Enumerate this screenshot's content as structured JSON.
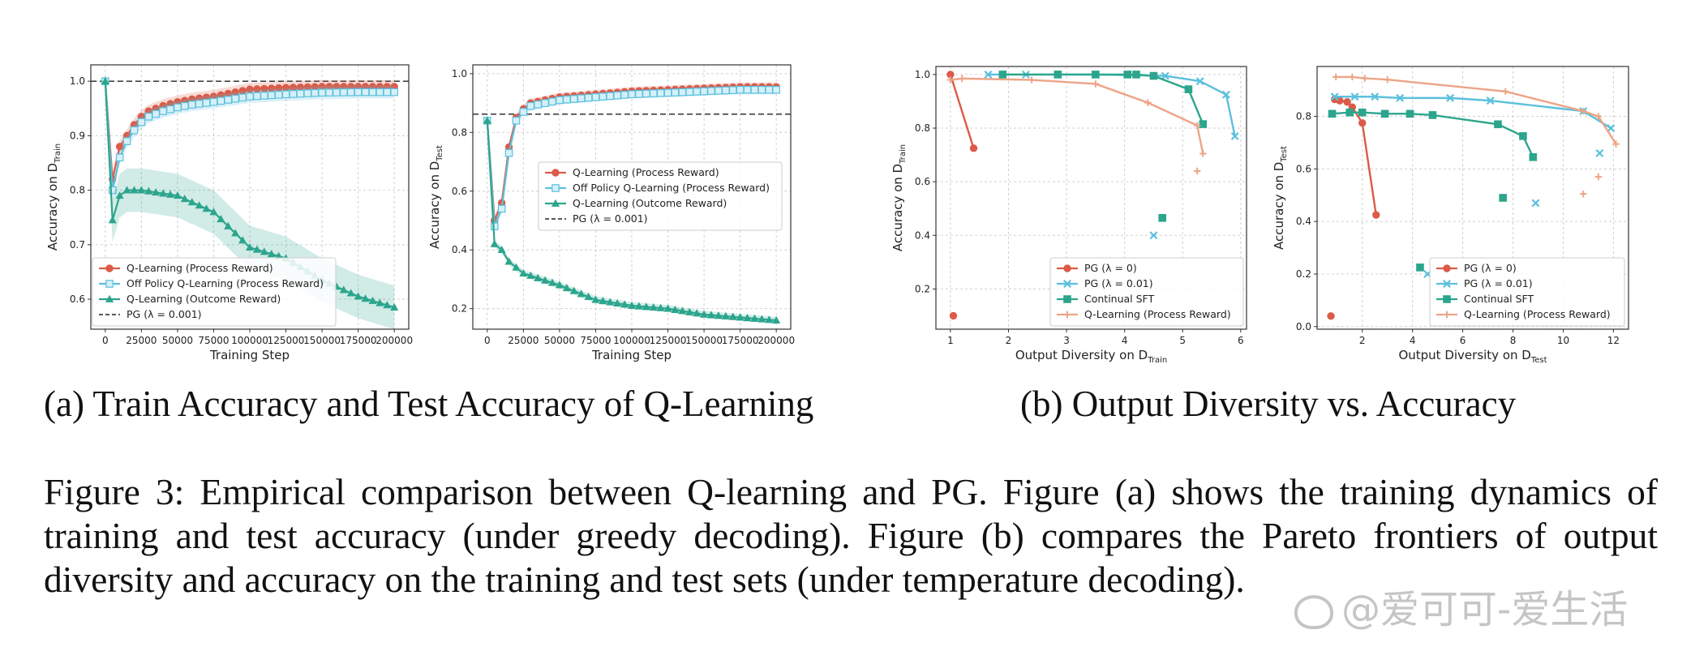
{
  "subcaptions": {
    "a": "(a) Train Accuracy and Test Accuracy of Q-Learning",
    "b": "(b) Output Diversity vs. Accuracy"
  },
  "caption": "Figure 3: Empirical comparison between Q-learning and PG. Figure (a) shows the training dynamics of training and test accuracy (under greedy decoding). Figure (b) compares the Pareto frontiers of output diversity and accuracy on the training and test sets (under temperature decoding).",
  "watermark": "@爱可可-爱生活",
  "colors": {
    "red": "#dc5b48",
    "blue": "#5bc0de",
    "teal": "#2ca58d",
    "salmon": "#eda487",
    "dash": "#222222"
  },
  "chart_data": [
    {
      "type": "line",
      "title": "",
      "xlabel": "Training Step",
      "ylabel": "Accuracy on D_Train",
      "ylabel_main": "Accuracy on D",
      "ylabel_sub": "Train",
      "xlim": [
        -10000,
        210000
      ],
      "ylim": [
        0.545,
        1.03
      ],
      "xticks": [
        0,
        25000,
        50000,
        75000,
        100000,
        125000,
        150000,
        175000,
        200000
      ],
      "xtick_labels": [
        "0",
        "25000",
        "50000",
        "75000",
        "100000",
        "125000",
        "150000",
        "175000",
        "200000"
      ],
      "yticks": [
        0.6,
        0.7,
        0.8,
        0.9,
        1.0
      ],
      "ytick_labels": [
        "0.6",
        "0.7",
        "0.8",
        "0.9",
        "1.0"
      ],
      "grid": true,
      "legend": "bottom-left",
      "hline": {
        "y": 1.0,
        "name": "PG (λ = 0.001)"
      },
      "series": [
        {
          "name": "Q-Learning (Process Reward)",
          "color": "#dc5b48",
          "marker": "circle",
          "band": 0.012,
          "x": [
            0,
            5000,
            10000,
            15000,
            20000,
            25000,
            30000,
            40000,
            50000,
            60000,
            75000,
            100000,
            125000,
            150000,
            175000,
            200000
          ],
          "y": [
            1.0,
            0.82,
            0.88,
            0.9,
            0.92,
            0.935,
            0.945,
            0.955,
            0.962,
            0.967,
            0.972,
            0.985,
            0.988,
            0.99,
            0.99,
            0.99
          ]
        },
        {
          "name": "Off Policy Q-Learning (Process Reward)",
          "color": "#5bc0de",
          "marker": "square",
          "band": 0.012,
          "x": [
            0,
            5000,
            10000,
            15000,
            20000,
            25000,
            30000,
            40000,
            50000,
            60000,
            75000,
            100000,
            125000,
            150000,
            175000,
            200000
          ],
          "y": [
            1.0,
            0.8,
            0.86,
            0.89,
            0.91,
            0.925,
            0.935,
            0.945,
            0.952,
            0.957,
            0.962,
            0.972,
            0.976,
            0.979,
            0.98,
            0.98
          ]
        },
        {
          "name": "Q-Learning (Outcome Reward)",
          "color": "#2ca58d",
          "marker": "triangle",
          "band": 0.04,
          "x": [
            0,
            5000,
            10000,
            15000,
            25000,
            50000,
            75000,
            100000,
            125000,
            150000,
            175000,
            200000
          ],
          "y": [
            1.0,
            0.745,
            0.79,
            0.8,
            0.8,
            0.79,
            0.76,
            0.695,
            0.675,
            0.635,
            0.605,
            0.585
          ]
        }
      ]
    },
    {
      "type": "line",
      "title": "",
      "xlabel": "Training Step",
      "ylabel": "Accuracy on D_Test",
      "ylabel_main": "Accuracy on D",
      "ylabel_sub": "Test",
      "xlim": [
        -10000,
        210000
      ],
      "ylim": [
        0.13,
        1.03
      ],
      "xticks": [
        0,
        25000,
        50000,
        75000,
        100000,
        125000,
        150000,
        175000,
        200000
      ],
      "xtick_labels": [
        "0",
        "25000",
        "50000",
        "75000",
        "100000",
        "125000",
        "150000",
        "175000",
        "200000"
      ],
      "yticks": [
        0.2,
        0.4,
        0.6,
        0.8,
        1.0
      ],
      "ytick_labels": [
        "0.2",
        "0.4",
        "0.6",
        "0.8",
        "1.0"
      ],
      "grid": true,
      "legend": "center-right",
      "hline": {
        "y": 0.862,
        "name": "PG (λ = 0.001)"
      },
      "series": [
        {
          "name": "Q-Learning (Process Reward)",
          "color": "#dc5b48",
          "marker": "circle",
          "band": 0.015,
          "x": [
            0,
            5000,
            10000,
            15000,
            20000,
            25000,
            30000,
            40000,
            50000,
            75000,
            100000,
            125000,
            150000,
            175000,
            200000
          ],
          "y": [
            0.84,
            0.5,
            0.56,
            0.75,
            0.85,
            0.88,
            0.9,
            0.91,
            0.92,
            0.93,
            0.94,
            0.945,
            0.95,
            0.955,
            0.955
          ]
        },
        {
          "name": "Off Policy Q-Learning (Process Reward)",
          "color": "#5bc0de",
          "marker": "square",
          "band": 0.015,
          "x": [
            0,
            5000,
            10000,
            15000,
            20000,
            25000,
            30000,
            40000,
            50000,
            75000,
            100000,
            125000,
            150000,
            175000,
            200000
          ],
          "y": [
            0.84,
            0.48,
            0.54,
            0.73,
            0.84,
            0.87,
            0.89,
            0.9,
            0.91,
            0.92,
            0.93,
            0.935,
            0.94,
            0.945,
            0.945
          ]
        },
        {
          "name": "Q-Learning (Outcome Reward)",
          "color": "#2ca58d",
          "marker": "triangle",
          "band": 0.012,
          "x": [
            0,
            5000,
            10000,
            15000,
            25000,
            50000,
            75000,
            100000,
            125000,
            150000,
            175000,
            200000
          ],
          "y": [
            0.84,
            0.42,
            0.4,
            0.36,
            0.32,
            0.28,
            0.23,
            0.21,
            0.2,
            0.18,
            0.17,
            0.16
          ]
        }
      ]
    },
    {
      "type": "line",
      "title": "",
      "xlabel": "Output Diversity on D_Train",
      "xlabel_main": "Output Diversity on D",
      "xlabel_sub": "Train",
      "ylabel": "Accuracy on D_Train",
      "ylabel_main": "Accuracy on D",
      "ylabel_sub": "Train",
      "xlim": [
        0.75,
        6.1
      ],
      "ylim": [
        0.05,
        1.03
      ],
      "xticks": [
        1,
        2,
        3,
        4,
        5,
        6
      ],
      "xtick_labels": [
        "1",
        "2",
        "3",
        "4",
        "5",
        "6"
      ],
      "yticks": [
        0.2,
        0.4,
        0.6,
        0.8,
        1.0
      ],
      "ytick_labels": [
        "0.2",
        "0.4",
        "0.6",
        "0.8",
        "1.0"
      ],
      "grid": true,
      "legend": "bottom-right",
      "series": [
        {
          "name": "PG (λ = 0)",
          "color": "#dc5b48",
          "marker": "circle",
          "x": [
            1.0,
            1.4
          ],
          "y": [
            1.0,
            0.725
          ],
          "outliers": {
            "x": [
              1.05
            ],
            "y": [
              0.1
            ]
          }
        },
        {
          "name": "PG (λ = 0.01)",
          "color": "#5bc0de",
          "marker": "x",
          "x": [
            1.65,
            2.3,
            3.5,
            4.7,
            5.3,
            5.75,
            5.9
          ],
          "y": [
            1.0,
            1.0,
            1.0,
            0.995,
            0.975,
            0.925,
            0.77
          ],
          "outliers": {
            "x": [
              4.5
            ],
            "y": [
              0.4
            ]
          }
        },
        {
          "name": "Continual SFT",
          "color": "#2ca58d",
          "marker": "square",
          "x": [
            1.9,
            2.85,
            3.5,
            4.05,
            4.2,
            4.5,
            5.1,
            5.35
          ],
          "y": [
            1.0,
            1.0,
            1.0,
            1.0,
            1.0,
            0.995,
            0.945,
            0.815
          ],
          "outliers": {
            "x": [
              4.65
            ],
            "y": [
              0.465
            ]
          }
        },
        {
          "name": "Q-Learning (Process Reward)",
          "color": "#eda487",
          "marker": "plus",
          "x": [
            1.0,
            1.2,
            2.4,
            3.5,
            4.4,
            5.25,
            5.35
          ],
          "y": [
            0.98,
            0.985,
            0.98,
            0.965,
            0.895,
            0.81,
            0.705
          ],
          "outliers": {
            "x": [
              5.25
            ],
            "y": [
              0.64
            ]
          }
        }
      ]
    },
    {
      "type": "line",
      "title": "",
      "xlabel": "Output Diversity on D_Test",
      "xlabel_main": "Output Diversity on D",
      "xlabel_sub": "Test",
      "ylabel": "Accuracy on D_Test",
      "ylabel_main": "Accuracy on D",
      "ylabel_sub": "Test",
      "xlim": [
        0.2,
        12.6
      ],
      "ylim": [
        -0.01,
        0.99
      ],
      "xticks": [
        2,
        4,
        6,
        8,
        10,
        12
      ],
      "xtick_labels": [
        "2",
        "4",
        "6",
        "8",
        "10",
        "12"
      ],
      "yticks": [
        0.0,
        0.2,
        0.4,
        0.6,
        0.8
      ],
      "ytick_labels": [
        "0.0",
        "0.2",
        "0.4",
        "0.6",
        "0.8"
      ],
      "grid": true,
      "legend": "bottom-right",
      "series": [
        {
          "name": "PG (λ = 0)",
          "color": "#dc5b48",
          "marker": "circle",
          "x": [
            0.9,
            1.1,
            1.4,
            1.6,
            2.0,
            2.55
          ],
          "y": [
            0.865,
            0.86,
            0.855,
            0.835,
            0.775,
            0.425
          ],
          "outliers": {
            "x": [
              0.75
            ],
            "y": [
              0.04
            ]
          }
        },
        {
          "name": "PG (λ = 0.01)",
          "color": "#5bc0de",
          "marker": "x",
          "x": [
            0.9,
            1.7,
            2.5,
            3.5,
            5.5,
            7.1,
            10.8,
            11.9
          ],
          "y": [
            0.875,
            0.875,
            0.875,
            0.87,
            0.87,
            0.86,
            0.82,
            0.755
          ],
          "outliers": {
            "x": [
              4.6,
              8.9,
              11.45
            ],
            "y": [
              0.2,
              0.47,
              0.66
            ]
          }
        },
        {
          "name": "Continual SFT",
          "color": "#2ca58d",
          "marker": "square",
          "x": [
            0.8,
            1.5,
            2.0,
            2.9,
            3.9,
            4.8,
            7.4,
            8.4,
            8.8
          ],
          "y": [
            0.81,
            0.815,
            0.815,
            0.81,
            0.81,
            0.805,
            0.77,
            0.725,
            0.645
          ],
          "outliers": {
            "x": [
              4.3,
              7.6
            ],
            "y": [
              0.225,
              0.49
            ]
          }
        },
        {
          "name": "Q-Learning (Process Reward)",
          "color": "#eda487",
          "marker": "plus",
          "x": [
            0.95,
            1.6,
            2.1,
            3.0,
            7.7,
            10.8,
            11.4,
            12.1
          ],
          "y": [
            0.95,
            0.95,
            0.945,
            0.94,
            0.895,
            0.82,
            0.8,
            0.695
          ],
          "outliers": {
            "x": [
              10.8,
              11.4
            ],
            "y": [
              0.505,
              0.57
            ]
          }
        }
      ]
    }
  ]
}
